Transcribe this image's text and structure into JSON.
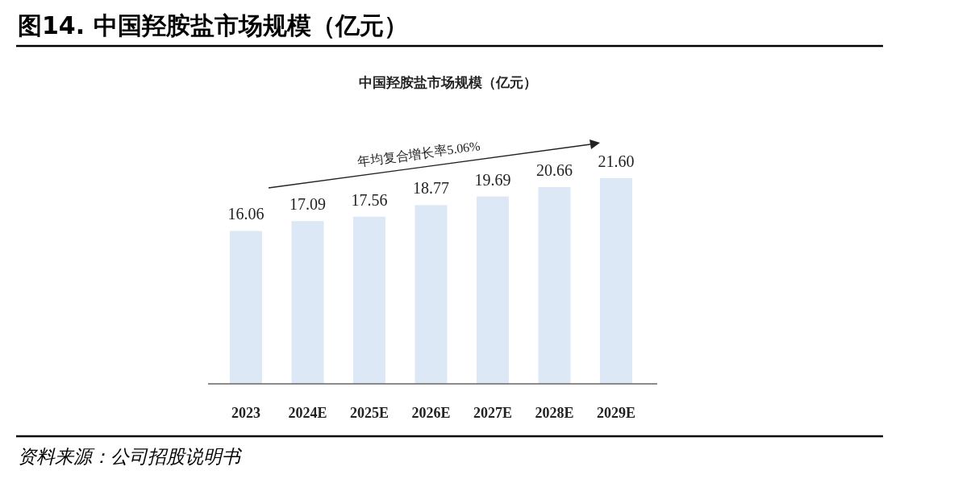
{
  "chart_data": {
    "type": "bar",
    "title": "图14. 中国羟胺盐市场规模（亿元）",
    "subtitle": "中国羟胺盐市场规模（亿元）",
    "categories": [
      "2023",
      "2024E",
      "2025E",
      "2026E",
      "2027E",
      "2028E",
      "2029E"
    ],
    "values": [
      16.06,
      17.09,
      17.56,
      18.77,
      19.69,
      20.66,
      21.6
    ],
    "value_labels": [
      "16.06",
      "17.09",
      "17.56",
      "18.77",
      "19.69",
      "20.66",
      "21.60"
    ],
    "color": "#dce8f5",
    "annotations": [
      "年均复合增长率5.06%",
      "资料来源：公司招股说明书"
    ]
  }
}
